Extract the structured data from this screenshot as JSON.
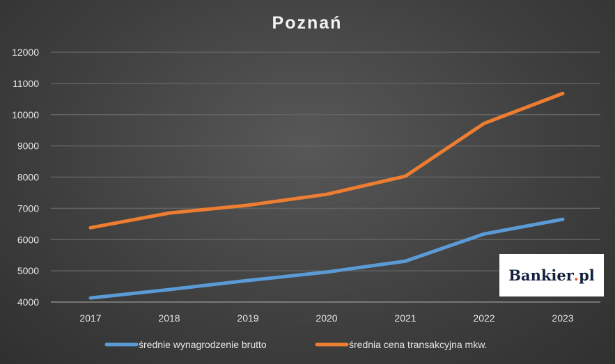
{
  "chart_data": {
    "type": "line",
    "title": "Poznań",
    "xlabel": "",
    "ylabel": "",
    "categories": [
      "2017",
      "2018",
      "2019",
      "2020",
      "2021",
      "2022",
      "2023"
    ],
    "ylim": [
      4000,
      12000
    ],
    "yticks": [
      4000,
      5000,
      6000,
      7000,
      8000,
      9000,
      10000,
      11000,
      12000
    ],
    "grid": true,
    "legend_position": "bottom",
    "series": [
      {
        "name": "średnie wynagrodzenie brutto",
        "color": "#5b9bd5",
        "values": [
          4130,
          4400,
          4690,
          4960,
          5310,
          6180,
          6650
        ]
      },
      {
        "name": "średnia cena transakcyjna mkw.",
        "color": "#ed7d31",
        "values": [
          6380,
          6850,
          7100,
          7450,
          8030,
          9720,
          10680
        ]
      }
    ]
  },
  "logo": {
    "text": "Bankier.pl"
  }
}
